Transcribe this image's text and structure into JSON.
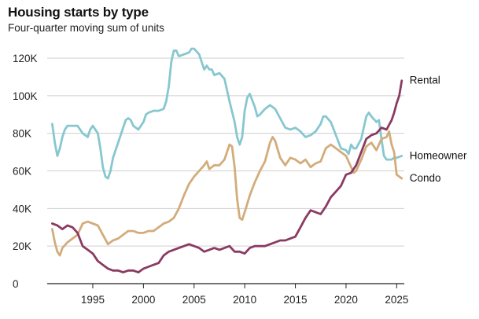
{
  "chart_data": {
    "type": "line",
    "title": "Housing starts by type",
    "subtitle": "Four-quarter moving sum of units",
    "xlabel": "",
    "ylabel": "",
    "xlim": [
      1990.5,
      2025.75
    ],
    "ylim": [
      0,
      120000
    ],
    "x_ticks": [
      1995,
      2000,
      2005,
      2010,
      2015,
      2020,
      2025
    ],
    "y_ticks": [
      {
        "value": 0,
        "label": "0"
      },
      {
        "value": 20000,
        "label": "20K"
      },
      {
        "value": 40000,
        "label": "40K"
      },
      {
        "value": 60000,
        "label": "60K"
      },
      {
        "value": 80000,
        "label": "80K"
      },
      {
        "value": 100000,
        "label": "100K"
      },
      {
        "value": 120000,
        "label": "120K"
      }
    ],
    "grid": "horizontal",
    "legend": "direct labels at line ends (right)",
    "series": [
      {
        "name": "Homeowner",
        "color": "#87c7cf",
        "points": [
          [
            1991.0,
            85000
          ],
          [
            1991.25,
            75000
          ],
          [
            1991.5,
            68000
          ],
          [
            1991.75,
            72000
          ],
          [
            1992.0,
            78000
          ],
          [
            1992.25,
            82000
          ],
          [
            1992.5,
            84000
          ],
          [
            1993.0,
            84000
          ],
          [
            1993.5,
            84000
          ],
          [
            1994.0,
            80000
          ],
          [
            1994.5,
            78000
          ],
          [
            1994.75,
            82000
          ],
          [
            1995.0,
            84000
          ],
          [
            1995.5,
            80000
          ],
          [
            1995.75,
            72000
          ],
          [
            1996.0,
            62000
          ],
          [
            1996.25,
            57000
          ],
          [
            1996.5,
            56000
          ],
          [
            1996.75,
            60000
          ],
          [
            1997.0,
            67000
          ],
          [
            1997.5,
            75000
          ],
          [
            1998.0,
            83000
          ],
          [
            1998.25,
            87000
          ],
          [
            1998.5,
            88000
          ],
          [
            1998.75,
            87000
          ],
          [
            1999.0,
            84000
          ],
          [
            1999.5,
            82000
          ],
          [
            2000.0,
            86000
          ],
          [
            2000.25,
            90000
          ],
          [
            2000.5,
            91000
          ],
          [
            2001.0,
            92000
          ],
          [
            2001.5,
            92000
          ],
          [
            2002.0,
            93000
          ],
          [
            2002.25,
            97000
          ],
          [
            2002.5,
            105000
          ],
          [
            2002.75,
            118000
          ],
          [
            2003.0,
            124000
          ],
          [
            2003.25,
            124000
          ],
          [
            2003.5,
            121000
          ],
          [
            2004.0,
            122000
          ],
          [
            2004.5,
            123000
          ],
          [
            2004.75,
            125000
          ],
          [
            2005.0,
            125000
          ],
          [
            2005.5,
            122000
          ],
          [
            2005.75,
            118000
          ],
          [
            2006.0,
            114000
          ],
          [
            2006.25,
            116000
          ],
          [
            2006.5,
            114000
          ],
          [
            2006.75,
            114000
          ],
          [
            2007.0,
            111000
          ],
          [
            2007.5,
            112000
          ],
          [
            2008.0,
            109000
          ],
          [
            2008.5,
            97000
          ],
          [
            2009.0,
            86000
          ],
          [
            2009.25,
            78000
          ],
          [
            2009.5,
            74000
          ],
          [
            2009.75,
            78000
          ],
          [
            2010.0,
            92000
          ],
          [
            2010.25,
            99000
          ],
          [
            2010.5,
            101000
          ],
          [
            2011.0,
            94000
          ],
          [
            2011.25,
            89000
          ],
          [
            2011.5,
            90000
          ],
          [
            2012.0,
            93000
          ],
          [
            2012.5,
            95000
          ],
          [
            2013.0,
            93000
          ],
          [
            2013.5,
            88000
          ],
          [
            2014.0,
            83000
          ],
          [
            2014.5,
            82000
          ],
          [
            2015.0,
            83000
          ],
          [
            2015.5,
            81000
          ],
          [
            2016.0,
            78000
          ],
          [
            2016.5,
            79000
          ],
          [
            2017.0,
            81000
          ],
          [
            2017.5,
            85000
          ],
          [
            2017.75,
            89000
          ],
          [
            2018.0,
            89000
          ],
          [
            2018.5,
            86000
          ],
          [
            2019.0,
            79000
          ],
          [
            2019.5,
            72000
          ],
          [
            2020.0,
            71000
          ],
          [
            2020.25,
            69000
          ],
          [
            2020.5,
            74000
          ],
          [
            2020.75,
            72000
          ],
          [
            2021.0,
            72000
          ],
          [
            2021.5,
            77000
          ],
          [
            2021.75,
            83000
          ],
          [
            2022.0,
            89000
          ],
          [
            2022.25,
            91000
          ],
          [
            2022.5,
            89000
          ],
          [
            2023.0,
            86000
          ],
          [
            2023.25,
            87000
          ],
          [
            2023.5,
            77000
          ],
          [
            2023.75,
            68000
          ],
          [
            2024.0,
            66000
          ],
          [
            2024.5,
            66000
          ],
          [
            2024.75,
            67000
          ],
          [
            2025.0,
            67000
          ],
          [
            2025.5,
            68000
          ]
        ]
      },
      {
        "name": "Condo",
        "color": "#d3ac7b",
        "points": [
          [
            1991.0,
            29000
          ],
          [
            1991.25,
            22000
          ],
          [
            1991.5,
            17000
          ],
          [
            1991.75,
            15000
          ],
          [
            1992.0,
            19000
          ],
          [
            1992.5,
            22000
          ],
          [
            1993.0,
            24000
          ],
          [
            1993.5,
            26000
          ],
          [
            1993.75,
            29000
          ],
          [
            1994.0,
            32000
          ],
          [
            1994.5,
            33000
          ],
          [
            1995.0,
            32000
          ],
          [
            1995.5,
            31000
          ],
          [
            1996.0,
            26000
          ],
          [
            1996.5,
            21000
          ],
          [
            1997.0,
            23000
          ],
          [
            1997.5,
            24000
          ],
          [
            1998.0,
            26000
          ],
          [
            1998.5,
            28000
          ],
          [
            1999.0,
            28000
          ],
          [
            1999.5,
            27000
          ],
          [
            2000.0,
            27000
          ],
          [
            2000.5,
            28000
          ],
          [
            2001.0,
            28000
          ],
          [
            2001.5,
            30000
          ],
          [
            2002.0,
            32000
          ],
          [
            2002.5,
            33000
          ],
          [
            2003.0,
            35000
          ],
          [
            2003.5,
            40000
          ],
          [
            2004.0,
            47000
          ],
          [
            2004.5,
            53000
          ],
          [
            2005.0,
            57000
          ],
          [
            2005.5,
            60000
          ],
          [
            2006.0,
            63000
          ],
          [
            2006.25,
            65000
          ],
          [
            2006.5,
            61000
          ],
          [
            2007.0,
            63000
          ],
          [
            2007.5,
            63000
          ],
          [
            2008.0,
            66000
          ],
          [
            2008.5,
            74000
          ],
          [
            2008.75,
            73000
          ],
          [
            2009.0,
            62000
          ],
          [
            2009.25,
            45000
          ],
          [
            2009.5,
            35000
          ],
          [
            2009.75,
            34000
          ],
          [
            2010.0,
            38000
          ],
          [
            2010.5,
            47000
          ],
          [
            2011.0,
            54000
          ],
          [
            2011.5,
            60000
          ],
          [
            2012.0,
            65000
          ],
          [
            2012.5,
            75000
          ],
          [
            2012.75,
            78000
          ],
          [
            2013.0,
            76000
          ],
          [
            2013.5,
            67000
          ],
          [
            2014.0,
            63000
          ],
          [
            2014.5,
            67000
          ],
          [
            2015.0,
            66000
          ],
          [
            2015.5,
            64000
          ],
          [
            2016.0,
            66000
          ],
          [
            2016.5,
            62000
          ],
          [
            2017.0,
            64000
          ],
          [
            2017.5,
            65000
          ],
          [
            2018.0,
            72000
          ],
          [
            2018.5,
            74000
          ],
          [
            2019.0,
            72000
          ],
          [
            2019.5,
            70000
          ],
          [
            2020.0,
            68000
          ],
          [
            2020.5,
            62000
          ],
          [
            2020.75,
            59000
          ],
          [
            2021.0,
            60000
          ],
          [
            2021.5,
            66000
          ],
          [
            2022.0,
            73000
          ],
          [
            2022.5,
            75000
          ],
          [
            2022.75,
            73000
          ],
          [
            2023.0,
            71000
          ],
          [
            2023.5,
            77000
          ],
          [
            2024.0,
            78000
          ],
          [
            2024.25,
            81000
          ],
          [
            2024.5,
            74000
          ],
          [
            2024.75,
            70000
          ],
          [
            2025.0,
            58000
          ],
          [
            2025.5,
            56000
          ]
        ]
      },
      {
        "name": "Rental",
        "color": "#8b3a62",
        "points": [
          [
            1991.0,
            32000
          ],
          [
            1991.5,
            31000
          ],
          [
            1992.0,
            29000
          ],
          [
            1992.5,
            31000
          ],
          [
            1993.0,
            30000
          ],
          [
            1993.5,
            27000
          ],
          [
            1994.0,
            20000
          ],
          [
            1994.5,
            18000
          ],
          [
            1995.0,
            16000
          ],
          [
            1995.5,
            12000
          ],
          [
            1996.0,
            10000
          ],
          [
            1996.5,
            8000
          ],
          [
            1997.0,
            7000
          ],
          [
            1997.5,
            7000
          ],
          [
            1998.0,
            6000
          ],
          [
            1998.5,
            7000
          ],
          [
            1999.0,
            7000
          ],
          [
            1999.5,
            6000
          ],
          [
            2000.0,
            8000
          ],
          [
            2000.5,
            9000
          ],
          [
            2001.0,
            10000
          ],
          [
            2001.5,
            11000
          ],
          [
            2002.0,
            15000
          ],
          [
            2002.5,
            17000
          ],
          [
            2003.0,
            18000
          ],
          [
            2003.5,
            19000
          ],
          [
            2004.0,
            20000
          ],
          [
            2004.5,
            21000
          ],
          [
            2005.0,
            20000
          ],
          [
            2005.5,
            19000
          ],
          [
            2006.0,
            17000
          ],
          [
            2006.5,
            18000
          ],
          [
            2007.0,
            19000
          ],
          [
            2007.5,
            18000
          ],
          [
            2008.0,
            19000
          ],
          [
            2008.5,
            20000
          ],
          [
            2009.0,
            17000
          ],
          [
            2009.5,
            17000
          ],
          [
            2010.0,
            16000
          ],
          [
            2010.5,
            19000
          ],
          [
            2011.0,
            20000
          ],
          [
            2011.5,
            20000
          ],
          [
            2012.0,
            20000
          ],
          [
            2012.5,
            21000
          ],
          [
            2013.0,
            22000
          ],
          [
            2013.5,
            23000
          ],
          [
            2014.0,
            23000
          ],
          [
            2014.5,
            24000
          ],
          [
            2015.0,
            25000
          ],
          [
            2015.5,
            30000
          ],
          [
            2016.0,
            35000
          ],
          [
            2016.5,
            39000
          ],
          [
            2017.0,
            38000
          ],
          [
            2017.5,
            37000
          ],
          [
            2018.0,
            41000
          ],
          [
            2018.5,
            46000
          ],
          [
            2019.0,
            49000
          ],
          [
            2019.5,
            52000
          ],
          [
            2020.0,
            58000
          ],
          [
            2020.5,
            59000
          ],
          [
            2021.0,
            63000
          ],
          [
            2021.5,
            70000
          ],
          [
            2022.0,
            77000
          ],
          [
            2022.5,
            79000
          ],
          [
            2023.0,
            80000
          ],
          [
            2023.5,
            83000
          ],
          [
            2024.0,
            82000
          ],
          [
            2024.5,
            87000
          ],
          [
            2024.75,
            91000
          ],
          [
            2025.0,
            96000
          ],
          [
            2025.25,
            100000
          ],
          [
            2025.5,
            108000
          ]
        ]
      }
    ]
  }
}
